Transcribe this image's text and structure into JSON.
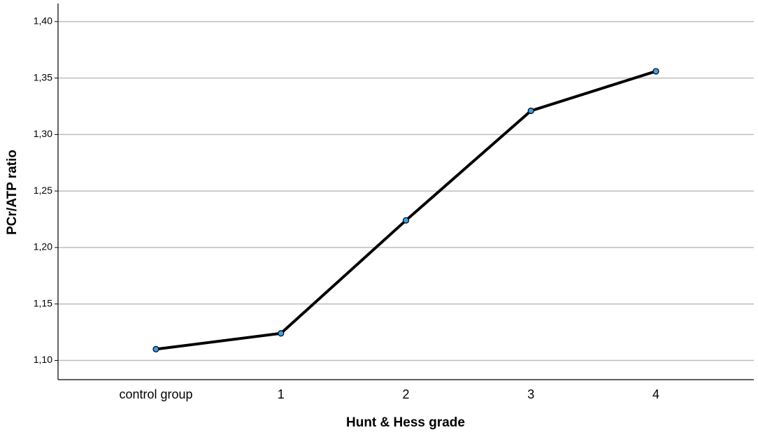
{
  "chart_data": {
    "type": "line",
    "x_label": "Hunt & Hess grade",
    "y_label": "PCr/ATP ratio",
    "categories": [
      "control group",
      "1",
      "2",
      "3",
      "4"
    ],
    "values": [
      1.11,
      1.124,
      1.224,
      1.321,
      1.356
    ],
    "color": "#000000",
    "marker_color": "#3aa0e8",
    "ylim": [
      1.083,
      1.416
    ],
    "yticks": [
      {
        "value": 1.1,
        "label": "1,10"
      },
      {
        "value": 1.15,
        "label": "1,15"
      },
      {
        "value": 1.2,
        "label": "1,20"
      },
      {
        "value": 1.25,
        "label": "1,25"
      },
      {
        "value": 1.3,
        "label": "1,30"
      },
      {
        "value": 1.35,
        "label": "1,35"
      },
      {
        "value": 1.4,
        "label": "1,40"
      }
    ],
    "grid": true
  }
}
